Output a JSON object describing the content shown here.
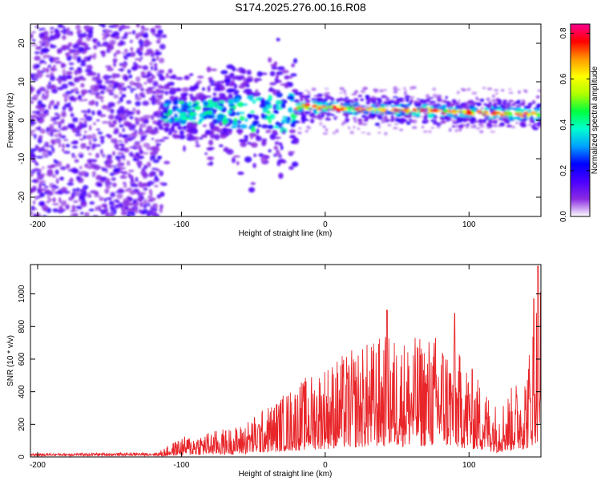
{
  "title": "S174.2025.276.00.16.R08",
  "chart_data": [
    {
      "type": "heatmap",
      "xlabel": "Height of straight line (km)",
      "ylabel": "Frequency (Hz)",
      "xlim": [
        -205,
        150
      ],
      "ylim": [
        -25,
        25
      ],
      "xticks": [
        -200,
        -100,
        0,
        100
      ],
      "yticks": [
        -20,
        -10,
        0,
        10,
        20
      ],
      "colorbar": {
        "label": "Normalized spectral amplitude",
        "range": [
          0.0,
          0.84
        ],
        "ticks": [
          0.0,
          0.2,
          0.4,
          0.6,
          0.8
        ],
        "colors": [
          "#ffffff",
          "#8a2be2",
          "#4b00ff",
          "#0000ff",
          "#00a0ff",
          "#00ffd0",
          "#00ff40",
          "#b0ff00",
          "#ffff00",
          "#ff9900",
          "#ff0000",
          "#ff0090"
        ]
      },
      "regions": [
        {
          "x_range": [
            -205,
            -112
          ],
          "freq_range": [
            -25,
            25
          ],
          "level": 0.1,
          "description": "noise"
        },
        {
          "x_range": [
            -112,
            -20
          ],
          "freq_center": 2,
          "freq_halfwidth": 6,
          "level": 0.3
        },
        {
          "x_range": [
            -20,
            150
          ],
          "freq_center_start": 3.5,
          "freq_center_end": 1.5,
          "freq_halfwidth": 2,
          "level": 0.6
        }
      ]
    },
    {
      "type": "line",
      "xlabel": "Height of straight line (km)",
      "ylabel": "SNR (10 * v/v)",
      "xlim": [
        -205,
        150
      ],
      "ylim": [
        0,
        1180
      ],
      "xticks": [
        -200,
        -100,
        0,
        100
      ],
      "yticks": [
        0,
        200,
        400,
        600,
        800,
        1000
      ],
      "color": "#e8262a",
      "envelope": [
        {
          "x": -205,
          "y": 18
        },
        {
          "x": -115,
          "y": 22
        },
        {
          "x": -100,
          "y": 70
        },
        {
          "x": -80,
          "y": 90
        },
        {
          "x": -60,
          "y": 110
        },
        {
          "x": -40,
          "y": 180
        },
        {
          "x": -20,
          "y": 260
        },
        {
          "x": 0,
          "y": 330
        },
        {
          "x": 20,
          "y": 380
        },
        {
          "x": 40,
          "y": 430
        },
        {
          "x": 60,
          "y": 420
        },
        {
          "x": 80,
          "y": 440
        },
        {
          "x": 100,
          "y": 330
        },
        {
          "x": 120,
          "y": 180
        },
        {
          "x": 140,
          "y": 320
        },
        {
          "x": 150,
          "y": 700
        }
      ],
      "peaks": [
        {
          "x": 43,
          "y": 900
        },
        {
          "x": 90,
          "y": 880
        },
        {
          "x": 148,
          "y": 1170
        },
        {
          "x": 145,
          "y": 970
        }
      ]
    }
  ]
}
